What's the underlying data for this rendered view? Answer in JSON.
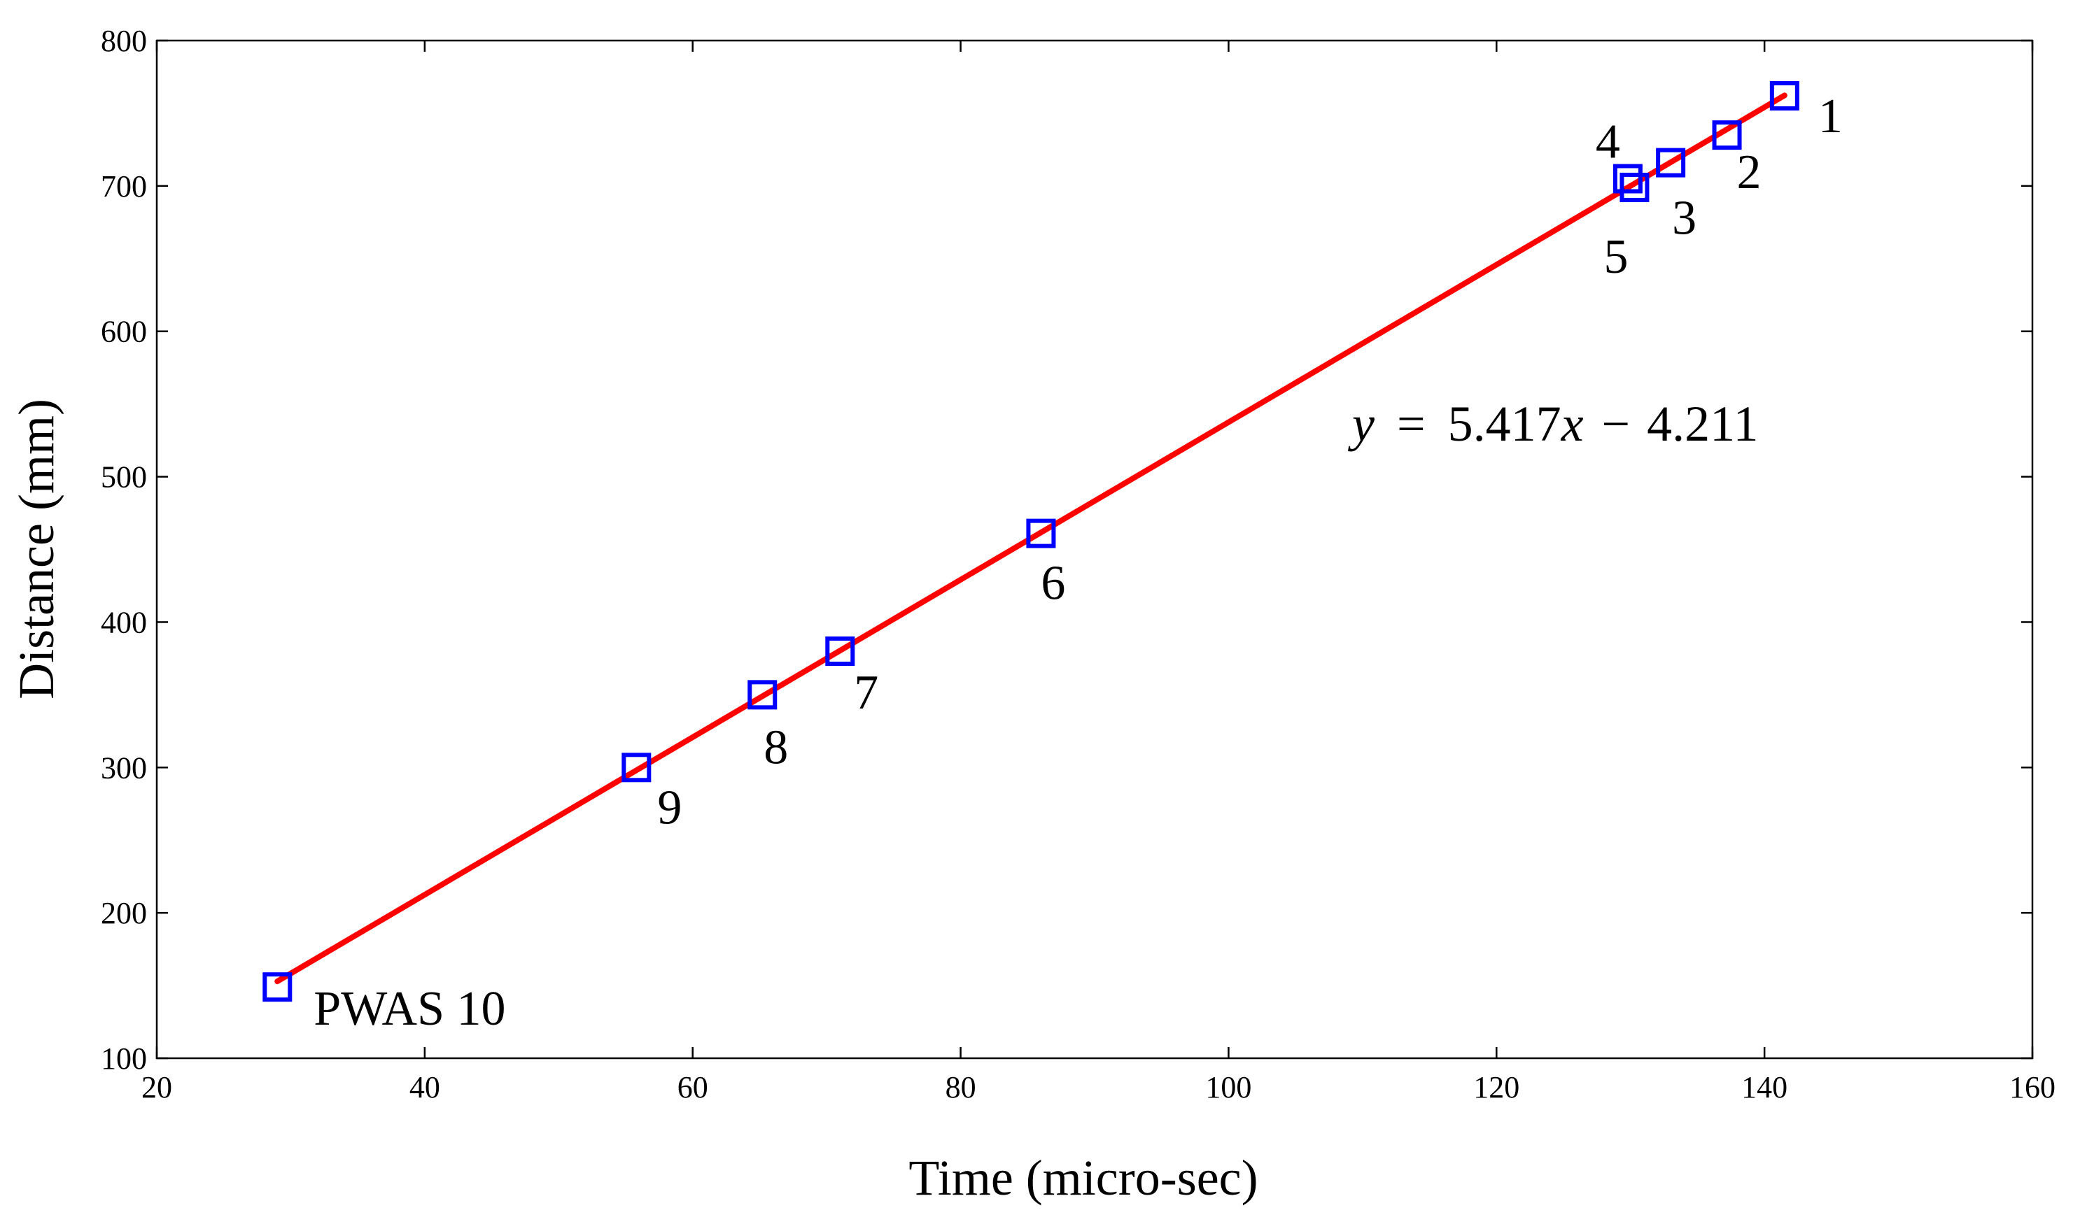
{
  "chart_data": {
    "type": "scatter",
    "xlabel": "Time (micro-sec)",
    "ylabel": "Distance (mm)",
    "xlim": [
      20,
      160
    ],
    "ylim": [
      100,
      800
    ],
    "xticks": [
      "20",
      "40",
      "60",
      "80",
      "100",
      "120",
      "140",
      "160"
    ],
    "yticks": [
      "100",
      "200",
      "300",
      "400",
      "500",
      "600",
      "700",
      "800"
    ],
    "grid": false,
    "series": [
      {
        "name": "PWAS",
        "marker": "square",
        "color": "#0000ff",
        "points": [
          {
            "label": "1",
            "x": 141.5,
            "y": 762
          },
          {
            "label": "2",
            "x": 137.2,
            "y": 735
          },
          {
            "label": "3",
            "x": 133.0,
            "y": 716
          },
          {
            "label": "4",
            "x": 129.8,
            "y": 705
          },
          {
            "label": "5",
            "x": 130.3,
            "y": 699
          },
          {
            "label": "6",
            "x": 86.0,
            "y": 461
          },
          {
            "label": "7",
            "x": 71.0,
            "y": 380
          },
          {
            "label": "8",
            "x": 65.2,
            "y": 350
          },
          {
            "label": "9",
            "x": 55.8,
            "y": 300
          },
          {
            "label": "PWAS 10",
            "x": 29.0,
            "y": 149
          }
        ]
      }
    ],
    "fit": {
      "color": "#ff0000",
      "slope": 5.417,
      "intercept": -4.211,
      "x_range": [
        29.0,
        141.5
      ],
      "equation": {
        "y_var": "y",
        "equals": "=",
        "slope": "5.417",
        "x_var": "x",
        "minus": "−",
        "intercept": "4.211"
      }
    }
  }
}
